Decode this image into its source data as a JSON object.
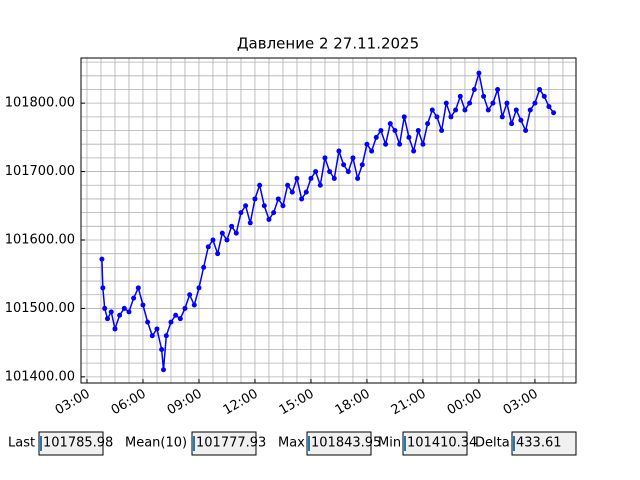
{
  "chart_data": {
    "type": "line",
    "title": "Давление 2 27.11.2025",
    "x": [
      3.8,
      3.85,
      3.95,
      4.1,
      4.3,
      4.5,
      4.75,
      5.0,
      5.25,
      5.5,
      5.75,
      6.0,
      6.25,
      6.5,
      6.75,
      7.0,
      7.1,
      7.25,
      7.5,
      7.75,
      8.0,
      8.25,
      8.5,
      8.75,
      9.0,
      9.25,
      9.5,
      9.75,
      10.0,
      10.25,
      10.5,
      10.75,
      11.0,
      11.25,
      11.5,
      11.75,
      12.0,
      12.25,
      12.5,
      12.75,
      13.0,
      13.25,
      13.5,
      13.75,
      14.0,
      14.25,
      14.5,
      14.75,
      15.0,
      15.25,
      15.5,
      15.75,
      16.0,
      16.25,
      16.5,
      16.75,
      17.0,
      17.25,
      17.5,
      17.75,
      18.0,
      18.25,
      18.5,
      18.75,
      19.0,
      19.25,
      19.5,
      19.75,
      20.0,
      20.25,
      20.5,
      20.75,
      21.0,
      21.25,
      21.5,
      21.75,
      22.0,
      22.25,
      22.5,
      22.75,
      23.0,
      23.25,
      23.5,
      23.75,
      24.0,
      24.25,
      24.5,
      24.75,
      25.0,
      25.25,
      25.5,
      25.75,
      26.0,
      26.25,
      26.5,
      26.75,
      27.0,
      27.25,
      27.5,
      27.75,
      28.0
    ],
    "series": [
      {
        "name": "Давление 2",
        "color": "#0000ff",
        "values": [
          101572,
          101530,
          101500,
          101485,
          101495,
          101470,
          101490,
          101500,
          101495,
          101515,
          101530,
          101505,
          101480,
          101460,
          101470,
          101440,
          101410.34,
          101460,
          101480,
          101490,
          101485,
          101500,
          101520,
          101505,
          101530,
          101560,
          101590,
          101600,
          101580,
          101610,
          101600,
          101620,
          101610,
          101640,
          101650,
          101625,
          101660,
          101680,
          101650,
          101630,
          101640,
          101660,
          101650,
          101680,
          101670,
          101690,
          101660,
          101670,
          101690,
          101700,
          101680,
          101720,
          101700,
          101690,
          101730,
          101710,
          101700,
          101720,
          101690,
          101710,
          101740,
          101730,
          101750,
          101760,
          101740,
          101770,
          101760,
          101740,
          101780,
          101750,
          101730,
          101760,
          101740,
          101770,
          101790,
          101780,
          101760,
          101800,
          101780,
          101790,
          101810,
          101790,
          101800,
          101820,
          101843.95,
          101810,
          101790,
          101800,
          101820,
          101780,
          101800,
          101770,
          101790,
          101775,
          101760,
          101790,
          101800,
          101820,
          101810,
          101795,
          101785.98
        ]
      }
    ],
    "xlim": [
      2.68,
      29.2
    ],
    "ylim": [
      101391,
      101866
    ],
    "xticks": [
      {
        "value": 3,
        "label": "03:00"
      },
      {
        "value": 6,
        "label": "06:00"
      },
      {
        "value": 9,
        "label": "09:00"
      },
      {
        "value": 12,
        "label": "12:00"
      },
      {
        "value": 15,
        "label": "15:00"
      },
      {
        "value": 18,
        "label": "18:00"
      },
      {
        "value": 21,
        "label": "21:00"
      },
      {
        "value": 24,
        "label": "00:00"
      },
      {
        "value": 27,
        "label": "03:00"
      }
    ],
    "yticks": [
      {
        "value": 101400,
        "label": "101400.00"
      },
      {
        "value": 101500,
        "label": "101500.00"
      },
      {
        "value": 101600,
        "label": "101600.00"
      },
      {
        "value": 101700,
        "label": "101700.00"
      },
      {
        "value": 101800,
        "label": "101800.00"
      }
    ],
    "xminor": [
      3,
      3.75,
      4.5,
      5.25,
      6,
      6.75,
      7.5,
      8.25,
      9,
      9.75,
      10.5,
      11.25,
      12,
      12.75,
      13.5,
      14.25,
      15,
      15.75,
      16.5,
      17.25,
      18,
      18.75,
      19.5,
      20.25,
      21,
      21.75,
      22.5,
      23.25,
      24,
      24.75,
      25.5,
      26.25,
      27,
      27.75,
      28.5
    ],
    "yminor": [
      101400,
      101420,
      101440,
      101460,
      101480,
      101500,
      101520,
      101540,
      101560,
      101580,
      101600,
      101620,
      101640,
      101660,
      101680,
      101700,
      101720,
      101740,
      101760,
      101780,
      101800,
      101820,
      101840,
      101860
    ],
    "grid": true
  },
  "stats": [
    {
      "label": "Last",
      "value": "101785.98"
    },
    {
      "label": "Mean(10)",
      "value": "101777.93"
    },
    {
      "label": "Max",
      "value": "101843.95"
    },
    {
      "label": "Min",
      "value": "101410.34"
    },
    {
      "label": "Delta",
      "value": "433.61"
    }
  ]
}
